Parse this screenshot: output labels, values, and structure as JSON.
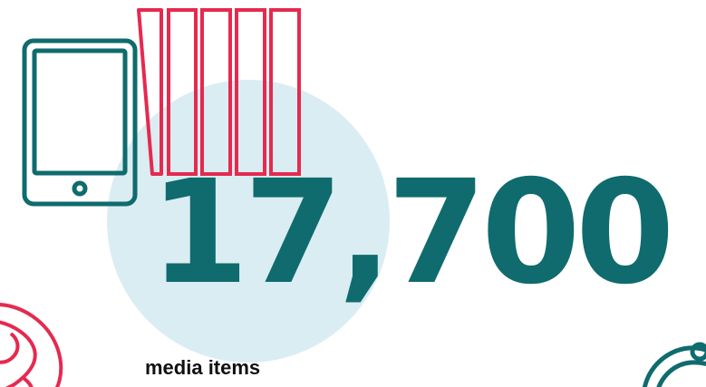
{
  "stat": {
    "number": "17,700",
    "caption": "media items"
  },
  "icons": {
    "device": "tablet-icon",
    "shelf": "books-icon",
    "decor_left": "globe-icon",
    "decor_right": "headset-icon"
  },
  "colors": {
    "teal": "#0f6b6e",
    "red": "#e52a4f",
    "circle": "#daedf2",
    "text": "#111111"
  }
}
